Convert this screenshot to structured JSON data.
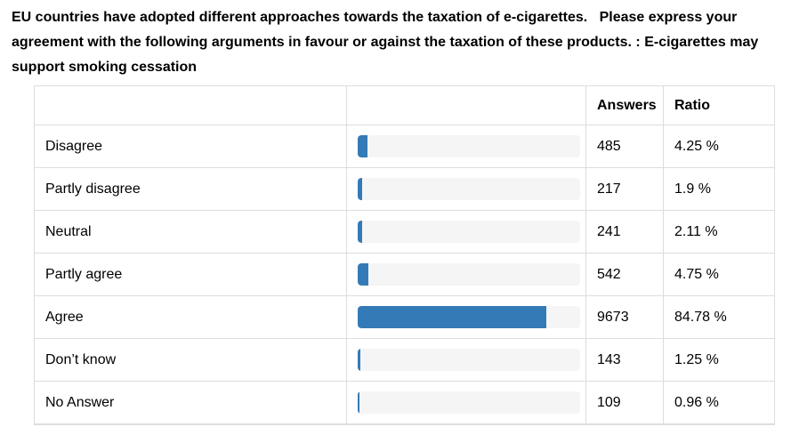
{
  "title": "EU countries have adopted different approaches towards the taxation of e-cigarettes.   Please express your agreement with the following arguments in favour or against the taxation of these products. : E-cigarettes may support smoking cessation",
  "table": {
    "headers": {
      "label": "",
      "bar": "",
      "answers": "Answers",
      "ratio": "Ratio"
    },
    "rows": [
      {
        "label": "Disagree",
        "answers": "485",
        "ratio": "4.25 %",
        "percent": 4.25
      },
      {
        "label": "Partly disagree",
        "answers": "217",
        "ratio": "1.9 %",
        "percent": 1.9
      },
      {
        "label": "Neutral",
        "answers": "241",
        "ratio": "2.11 %",
        "percent": 2.11
      },
      {
        "label": "Partly agree",
        "answers": "542",
        "ratio": "4.75 %",
        "percent": 4.75
      },
      {
        "label": "Agree",
        "answers": "9673",
        "ratio": "84.78 %",
        "percent": 84.78
      },
      {
        "label": "Don’t know",
        "answers": "143",
        "ratio": "1.25 %",
        "percent": 1.25
      },
      {
        "label": "No Answer",
        "answers": "109",
        "ratio": "0.96 %",
        "percent": 0.96
      }
    ]
  },
  "chart_data": {
    "type": "bar",
    "orientation": "horizontal",
    "title": "EU countries have adopted different approaches towards the taxation of e-cigarettes. Please express your agreement with the following arguments in favour or against the taxation of these products. : E-cigarettes may support smoking cessation",
    "categories": [
      "Disagree",
      "Partly disagree",
      "Neutral",
      "Partly agree",
      "Agree",
      "Don’t know",
      "No Answer"
    ],
    "series": [
      {
        "name": "Answers",
        "values": [
          485,
          217,
          241,
          542,
          9673,
          143,
          109
        ]
      },
      {
        "name": "Ratio (%)",
        "values": [
          4.25,
          1.9,
          2.11,
          4.75,
          84.78,
          1.25,
          0.96
        ]
      }
    ],
    "xlabel": "",
    "ylabel": "",
    "xlim": [
      0,
      100
    ],
    "grid": false,
    "legend_position": "none"
  },
  "colors": {
    "bar_fill": "#337ab7",
    "bar_track": "#f5f5f5",
    "border": "#dddddd",
    "text": "#000000",
    "background": "#ffffff"
  }
}
